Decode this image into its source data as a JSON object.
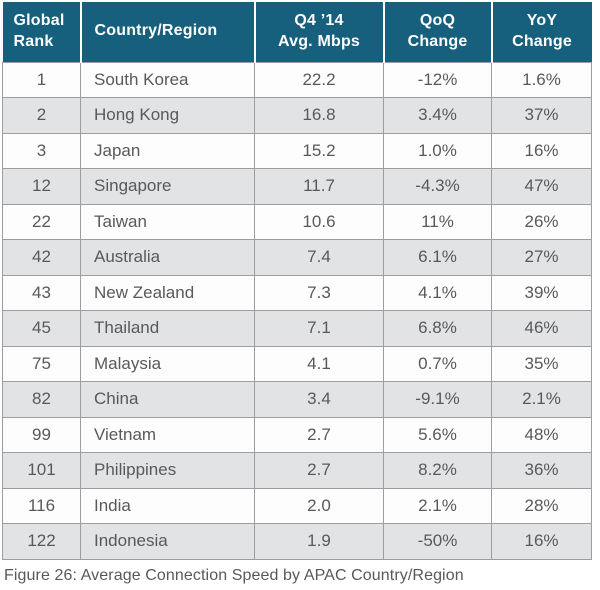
{
  "figure": {
    "caption": "Figure 26: Average Connection Speed by APAC Country/Region"
  },
  "colors": {
    "header_bg": "#165f7d",
    "header_text": "#ffffff",
    "row_alt_bg": "#e2e3e5",
    "row_bg": "#fdfdfd",
    "border": "#9c9da0",
    "text": "#58595b",
    "page_bg": "#ffffff"
  },
  "chart_data": {
    "type": "table",
    "title": "Average Connection Speed by APAC Country/Region",
    "columns": [
      "Global Rank",
      "Country/Region",
      "Q4 ’14 Avg. Mbps",
      "QoQ Change",
      "YoY Change"
    ],
    "header_labels": [
      "Global\nRank",
      "Country/Region",
      "Q4 ’14\nAvg. Mbps",
      "QoQ\nChange",
      "YoY\nChange"
    ],
    "rows": [
      {
        "rank": "1",
        "country": "South Korea",
        "mbps": "22.2",
        "qoq": "-12%",
        "yoy": "1.6%"
      },
      {
        "rank": "2",
        "country": "Hong Kong",
        "mbps": "16.8",
        "qoq": "3.4%",
        "yoy": "37%"
      },
      {
        "rank": "3",
        "country": "Japan",
        "mbps": "15.2",
        "qoq": "1.0%",
        "yoy": "16%"
      },
      {
        "rank": "12",
        "country": "Singapore",
        "mbps": "11.7",
        "qoq": "-4.3%",
        "yoy": "47%"
      },
      {
        "rank": "22",
        "country": "Taiwan",
        "mbps": "10.6",
        "qoq": "11%",
        "yoy": "26%"
      },
      {
        "rank": "42",
        "country": "Australia",
        "mbps": "7.4",
        "qoq": "6.1%",
        "yoy": "27%"
      },
      {
        "rank": "43",
        "country": "New Zealand",
        "mbps": "7.3",
        "qoq": "4.1%",
        "yoy": "39%"
      },
      {
        "rank": "45",
        "country": "Thailand",
        "mbps": "7.1",
        "qoq": "6.8%",
        "yoy": "46%"
      },
      {
        "rank": "75",
        "country": "Malaysia",
        "mbps": "4.1",
        "qoq": "0.7%",
        "yoy": "35%"
      },
      {
        "rank": "82",
        "country": "China",
        "mbps": "3.4",
        "qoq": "-9.1%",
        "yoy": "2.1%"
      },
      {
        "rank": "99",
        "country": "Vietnam",
        "mbps": "2.7",
        "qoq": "5.6%",
        "yoy": "48%"
      },
      {
        "rank": "101",
        "country": "Philippines",
        "mbps": "2.7",
        "qoq": "8.2%",
        "yoy": "36%"
      },
      {
        "rank": "116",
        "country": "India",
        "mbps": "2.0",
        "qoq": "2.1%",
        "yoy": "28%"
      },
      {
        "rank": "122",
        "country": "Indonesia",
        "mbps": "1.9",
        "qoq": "-50%",
        "yoy": "16%"
      }
    ]
  }
}
